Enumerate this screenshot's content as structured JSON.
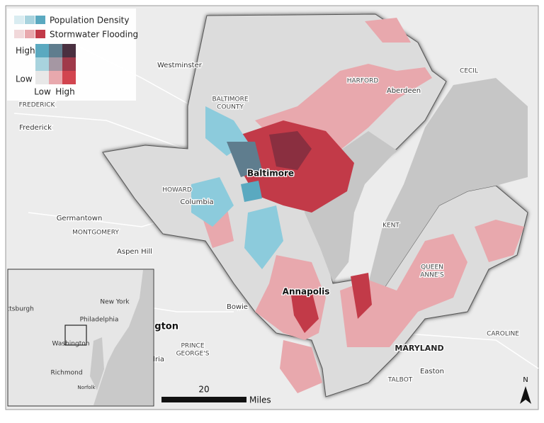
{
  "legend": {
    "rows": [
      "Population Density",
      "Stormwater Flooding"
    ],
    "axis_y": [
      "High",
      "Low"
    ],
    "axis_x": [
      "Low",
      "High"
    ]
  },
  "places": [
    "Westminster",
    "FREDERICK",
    "Frederick",
    "BALTIMORE",
    "COUNTY",
    "HARFORD",
    "Aberdeen",
    "CECIL",
    "Baltimore",
    "HOWARD",
    "Columbia",
    "Germantown",
    "MONTGOMERY",
    "Aspen Hill",
    "KENT",
    "QUEEN",
    "ANNE'S",
    "Annapolis",
    "Bowie",
    "PRINCE",
    "GEORGE'S",
    "Washington",
    "Alexandria",
    "MARYLAND",
    "CAROLINE",
    "Easton",
    "TALBOT"
  ],
  "inset": {
    "places": [
      "Pittsburgh",
      "New York",
      "Philadelphia",
      "Washington",
      "Richmond",
      "Norfolk"
    ]
  },
  "scale": {
    "value": "20",
    "unit": "Miles"
  },
  "north": "N"
}
